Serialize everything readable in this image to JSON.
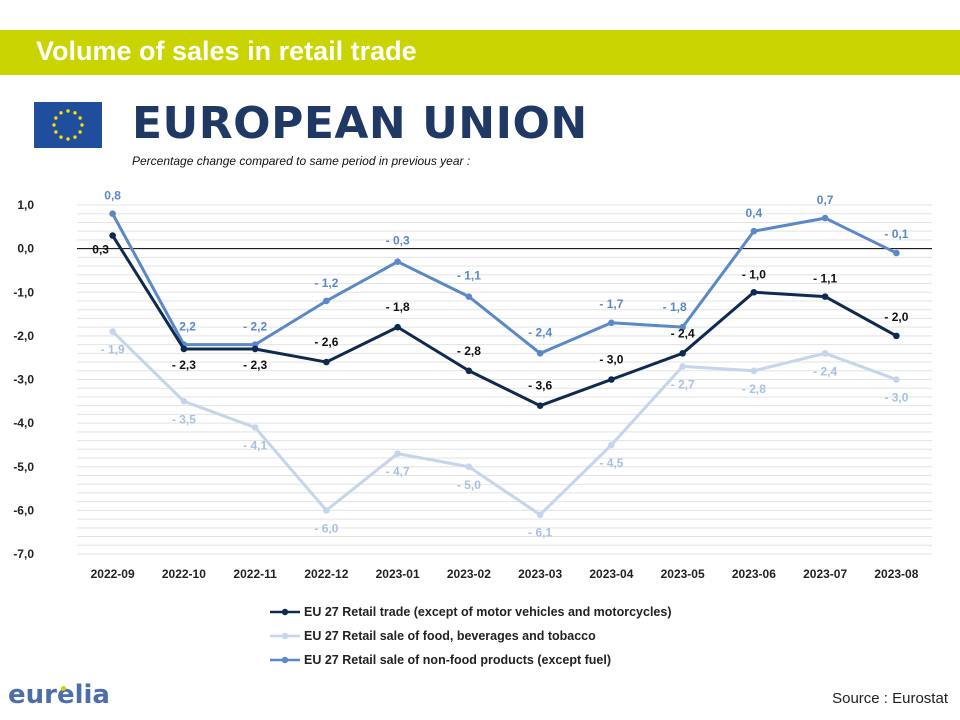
{
  "header": {
    "banner_title": "Volume of sales in retail trade"
  },
  "region": {
    "name": "EUROPEAN UNION",
    "subtitle": "Percentage change compared to same period in previous year :",
    "flag_icon": "eu-flag-icon"
  },
  "colors": {
    "banner": "#cad400",
    "title": "#1f3864",
    "series": [
      "#0f2a4f",
      "#c4d5ec",
      "#5b88c6"
    ]
  },
  "chart_data": {
    "type": "line",
    "categories": [
      "2022-09",
      "2022-10",
      "2022-11",
      "2022-12",
      "2023-01",
      "2023-02",
      "2023-03",
      "2023-04",
      "2023-05",
      "2023-06",
      "2023-07",
      "2023-08"
    ],
    "ylim": [
      -7.0,
      1.0
    ],
    "yticks": [
      "1,0",
      "0,0",
      "-1,0",
      "-2,0",
      "-3,0",
      "-4,0",
      "-5,0",
      "-6,0",
      "-7,0"
    ],
    "grid": true,
    "legend_position": "bottom",
    "series": [
      {
        "name": "EU 27 Retail trade (except of motor vehicles and motorcycles)",
        "values": [
          0.3,
          -2.3,
          -2.3,
          -2.6,
          -1.8,
          -2.8,
          -3.6,
          -3.0,
          -2.4,
          -1.0,
          -1.1,
          -2.0
        ],
        "labels": [
          "0,3",
          "- 2,3",
          "- 2,3",
          "- 2,6",
          "- 1,8",
          "- 2,8",
          "- 3,6",
          "- 3,0",
          "- 2,4",
          "- 1,0",
          "- 1,1",
          "- 2,0"
        ]
      },
      {
        "name": "EU 27 Retail sale of food, beverages and tobacco",
        "values": [
          -1.9,
          -3.5,
          -4.1,
          -6.0,
          -4.7,
          -5.0,
          -6.1,
          -4.5,
          -2.7,
          -2.8,
          -2.4,
          -3.0
        ],
        "labels": [
          "- 1,9",
          "- 3,5",
          "- 4,1",
          "- 6,0",
          "- 4,7",
          "- 5,0",
          "- 6,1",
          "- 4,5",
          "- 2,7",
          "- 2,8",
          "- 2,4",
          "- 3,0"
        ]
      },
      {
        "name": "EU 27 Retail sale of non-food products (except fuel)",
        "values": [
          0.8,
          -2.2,
          -2.2,
          -1.2,
          -0.3,
          -1.1,
          -2.4,
          -1.7,
          -1.8,
          0.4,
          0.7,
          -0.1
        ],
        "labels": [
          "0,8",
          "- 2,2",
          "- 2,2",
          "- 1,2",
          "- 0,3",
          "- 1,1",
          "- 2,4",
          "- 1,7",
          "- 1,8",
          "0,4",
          "0,7",
          "- 0,1"
        ]
      }
    ]
  },
  "footer": {
    "logo_text": "eurelia",
    "source": "Source : Eurostat"
  }
}
